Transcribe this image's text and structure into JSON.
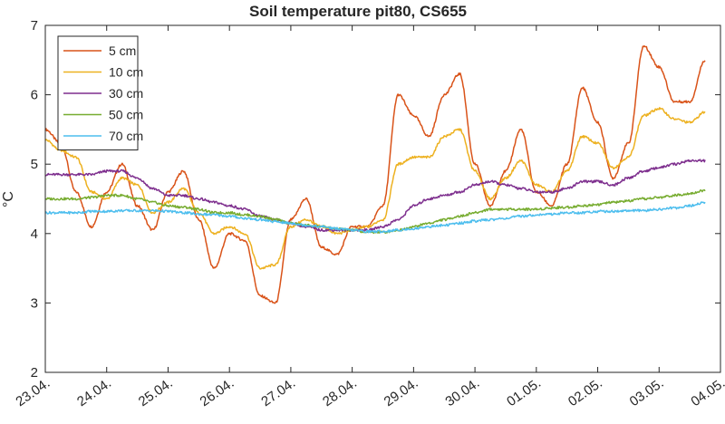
{
  "chart_data": {
    "type": "line",
    "title": "Soil temperature pit80, CS655",
    "xlabel": "",
    "ylabel": "°C",
    "ylim": [
      2,
      7
    ],
    "yticks": [
      2,
      3,
      4,
      5,
      6,
      7
    ],
    "xticks": [
      "23.04.",
      "24.04.",
      "25.04.",
      "26.04.",
      "27.04.",
      "28.04.",
      "29.04.",
      "30.04.",
      "01.05.",
      "02.05.",
      "03.05.",
      "04.05."
    ],
    "xlim_days": [
      0,
      11
    ],
    "legend_position": "top-left",
    "grid": false,
    "x": [
      0,
      0.25,
      0.5,
      0.75,
      1,
      1.25,
      1.5,
      1.75,
      2,
      2.25,
      2.5,
      2.75,
      3,
      3.25,
      3.5,
      3.75,
      4,
      4.25,
      4.5,
      4.75,
      5,
      5.25,
      5.5,
      5.75,
      6,
      6.25,
      6.5,
      6.75,
      7,
      7.25,
      7.5,
      7.75,
      8,
      8.25,
      8.5,
      8.75,
      9,
      9.25,
      9.5,
      9.75,
      10,
      10.25,
      10.5,
      10.75
    ],
    "series": [
      {
        "name": "5 cm",
        "color": "#D95319",
        "values": [
          5.5,
          5.3,
          4.6,
          4.1,
          4.6,
          5.0,
          4.4,
          4.05,
          4.6,
          4.9,
          4.2,
          3.5,
          4.0,
          3.9,
          3.1,
          3.0,
          4.2,
          4.5,
          3.8,
          3.7,
          4.1,
          4.1,
          4.4,
          6.0,
          5.7,
          5.4,
          6.0,
          6.3,
          5.0,
          4.4,
          4.9,
          5.5,
          4.6,
          4.4,
          5.0,
          6.1,
          5.6,
          4.8,
          5.3,
          6.7,
          6.4,
          5.9,
          5.9,
          6.5
        ]
      },
      {
        "name": "10 cm",
        "color": "#EDB120",
        "values": [
          5.35,
          5.2,
          5.1,
          4.6,
          4.5,
          4.8,
          4.7,
          4.3,
          4.45,
          4.65,
          4.3,
          4.0,
          4.1,
          4.0,
          3.5,
          3.55,
          4.1,
          4.2,
          4.1,
          4.0,
          4.05,
          4.1,
          4.2,
          5.0,
          5.1,
          5.1,
          5.4,
          5.5,
          4.9,
          4.5,
          4.8,
          5.05,
          4.7,
          4.6,
          4.9,
          5.4,
          5.3,
          4.95,
          5.1,
          5.7,
          5.8,
          5.65,
          5.6,
          5.75
        ]
      },
      {
        "name": "30 cm",
        "color": "#7E2F8E",
        "values": [
          4.85,
          4.85,
          4.85,
          4.85,
          4.9,
          4.9,
          4.8,
          4.65,
          4.55,
          4.55,
          4.5,
          4.45,
          4.4,
          4.35,
          4.25,
          4.2,
          4.15,
          4.1,
          4.05,
          4.05,
          4.05,
          4.05,
          4.1,
          4.2,
          4.4,
          4.5,
          4.55,
          4.6,
          4.7,
          4.75,
          4.7,
          4.65,
          4.6,
          4.6,
          4.65,
          4.75,
          4.75,
          4.7,
          4.8,
          4.9,
          4.95,
          5.0,
          5.05,
          5.05
        ]
      },
      {
        "name": "50 cm",
        "color": "#77AC30",
        "values": [
          4.5,
          4.5,
          4.5,
          4.52,
          4.55,
          4.55,
          4.5,
          4.45,
          4.4,
          4.38,
          4.35,
          4.3,
          4.3,
          4.27,
          4.25,
          4.2,
          4.15,
          4.12,
          4.1,
          4.07,
          4.05,
          4.02,
          4.02,
          4.05,
          4.1,
          4.15,
          4.2,
          4.25,
          4.3,
          4.35,
          4.35,
          4.35,
          4.35,
          4.37,
          4.38,
          4.4,
          4.42,
          4.45,
          4.47,
          4.5,
          4.52,
          4.55,
          4.58,
          4.62
        ]
      },
      {
        "name": "70 cm",
        "color": "#4DBEEE",
        "values": [
          4.3,
          4.3,
          4.3,
          4.32,
          4.32,
          4.33,
          4.33,
          4.33,
          4.32,
          4.3,
          4.28,
          4.27,
          4.25,
          4.22,
          4.2,
          4.17,
          4.15,
          4.12,
          4.1,
          4.07,
          4.05,
          4.03,
          4.03,
          4.05,
          4.07,
          4.1,
          4.12,
          4.15,
          4.18,
          4.2,
          4.22,
          4.25,
          4.27,
          4.28,
          4.3,
          4.3,
          4.32,
          4.32,
          4.33,
          4.33,
          4.35,
          4.37,
          4.4,
          4.45
        ]
      }
    ]
  }
}
